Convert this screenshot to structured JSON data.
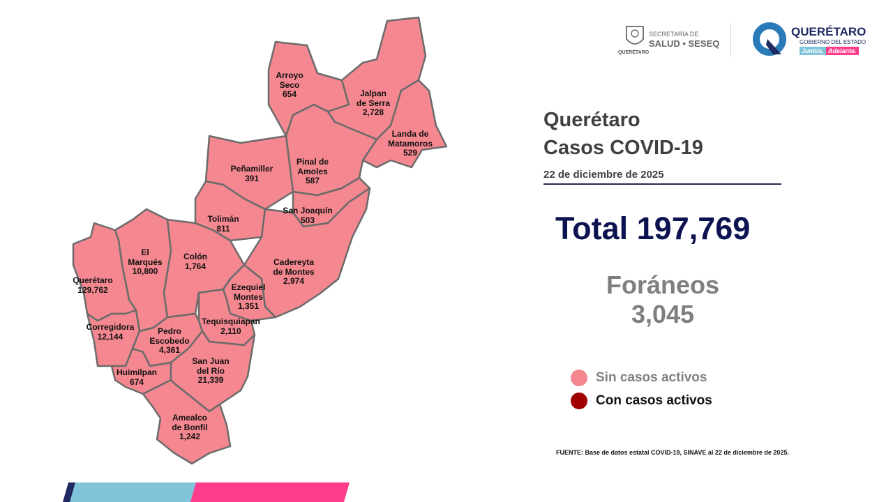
{
  "header": {
    "logo_left": {
      "line1": "SECRETARÍA DE",
      "line2": "SALUD • SESEQ",
      "seal_text": "QUERÉTARO"
    },
    "logo_right": {
      "name": "QUERÉTARO",
      "sub": "GOBIERNO DEL ESTADO",
      "slogan_a": "Juntos,",
      "slogan_b": "Adelante."
    }
  },
  "title": {
    "line1": "Querétaro",
    "line2": "Casos COVID-19"
  },
  "date": "22 de diciembre de 2025",
  "total": "Total 197,769",
  "foraneos": {
    "label": "Foráneos",
    "value": "3,045"
  },
  "legend": [
    {
      "label": "Sin casos activos",
      "color": "#F4878F"
    },
    {
      "label": "Con casos activos",
      "color": "#A00000"
    }
  ],
  "source": "FUENTE: Base de datos estatal  COVID-19,  SINAVE  al 22 de diciembre de 2025.",
  "colors": {
    "map_fill": "#F4878F",
    "border": "#6b6b6b",
    "total": "#0d1250",
    "bar_navy": "#1f2a60",
    "bar_blue": "#7fc4d8",
    "bar_pink": "#ff3d8b"
  },
  "municipalities": [
    {
      "name": "Arroyo Seco",
      "lines": [
        "Arroyo",
        "Seco"
      ],
      "cases": "654",
      "status": "Sin casos activos"
    },
    {
      "name": "Jalpan de Serra",
      "lines": [
        "Jalpan",
        "de Serra"
      ],
      "cases": "2,728",
      "status": "Sin casos activos"
    },
    {
      "name": "Landa de Matamoros",
      "lines": [
        "Landa de",
        "Matamoros"
      ],
      "cases": "529",
      "status": "Sin casos activos"
    },
    {
      "name": "Pinal de Amoles",
      "lines": [
        "Pinal de",
        "Amoles"
      ],
      "cases": "587",
      "status": "Sin casos activos"
    },
    {
      "name": "Peñamiller",
      "lines": [
        "Peñamiller"
      ],
      "cases": "391",
      "status": "Sin casos activos"
    },
    {
      "name": "San Joaquín",
      "lines": [
        "San Joaquín"
      ],
      "cases": "503",
      "status": "Sin casos activos"
    },
    {
      "name": "Tolimán",
      "lines": [
        "Tolimán"
      ],
      "cases": "811",
      "status": "Sin casos activos"
    },
    {
      "name": "Cadereyta de Montes",
      "lines": [
        "Cadereyta",
        "de Montes"
      ],
      "cases": "2,974",
      "status": "Sin casos activos"
    },
    {
      "name": "El Marqués",
      "lines": [
        "El",
        "Marqués"
      ],
      "cases": "10,800",
      "status": "Sin casos activos"
    },
    {
      "name": "Colón",
      "lines": [
        "Colón"
      ],
      "cases": "1,764",
      "status": "Sin casos activos"
    },
    {
      "name": "Querétaro",
      "lines": [
        "Querétaro"
      ],
      "cases": "129,762",
      "status": "Sin casos activos"
    },
    {
      "name": "Ezequiel Montes",
      "lines": [
        "Ezequiel",
        "Montes"
      ],
      "cases": "1,351",
      "status": "Sin casos activos"
    },
    {
      "name": "Corregidora",
      "lines": [
        "Corregidora"
      ],
      "cases": "12,144",
      "status": "Sin casos activos"
    },
    {
      "name": "Pedro Escobedo",
      "lines": [
        "Pedro",
        "Escobedo"
      ],
      "cases": "4,361",
      "status": "Sin casos activos"
    },
    {
      "name": "Tequisquiapan",
      "lines": [
        "Tequisquiapan"
      ],
      "cases": "2,110",
      "status": "Sin casos activos"
    },
    {
      "name": "Huimilpan",
      "lines": [
        "Huimilpan"
      ],
      "cases": "674",
      "status": "Sin casos activos"
    },
    {
      "name": "San Juan del Río",
      "lines": [
        "San Juan",
        "del Río"
      ],
      "cases": "21,339",
      "status": "Sin casos activos"
    },
    {
      "name": "Amealco de Bonfil",
      "lines": [
        "Amealco",
        "de Bonfil"
      ],
      "cases": "1,242",
      "status": "Sin casos activos"
    }
  ]
}
